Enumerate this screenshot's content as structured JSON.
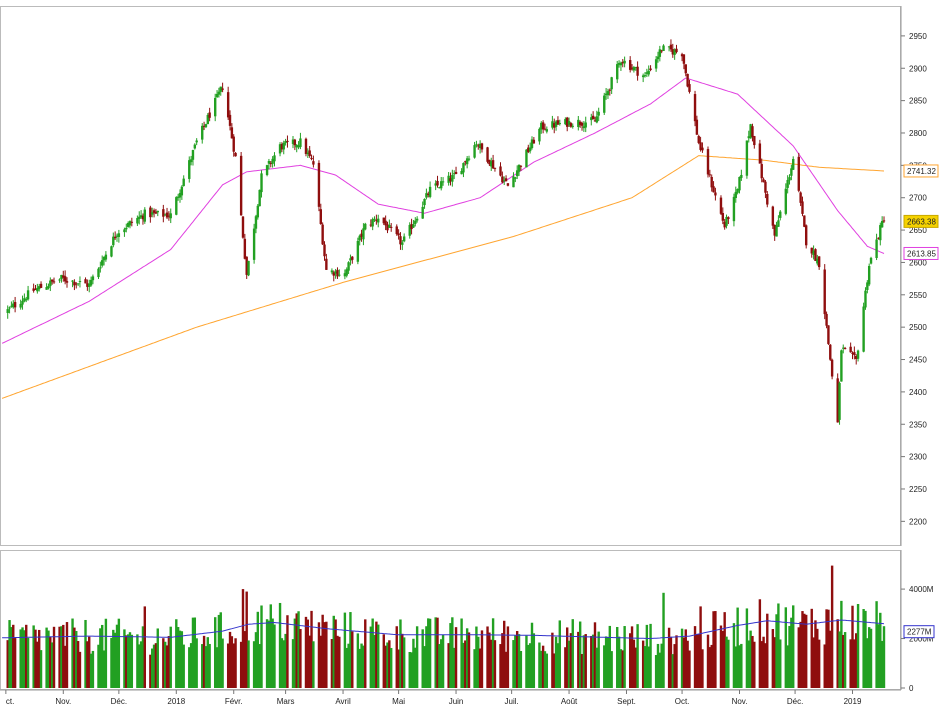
{
  "chart_data": [
    {
      "type": "candlestick",
      "title": "",
      "xlabel": "",
      "ylabel": "",
      "ylim": [
        2165,
        2990
      ],
      "y_ticks": [
        "2950",
        "2900",
        "2850",
        "2800",
        "2750",
        "2700",
        "2650",
        "2600",
        "2550",
        "2500",
        "2450",
        "2400",
        "2350",
        "2300",
        "2250",
        "2200"
      ],
      "x_ticks": [
        "ct.",
        "Nov.",
        "Déc.",
        "2018",
        "Févr.",
        "Mars",
        "Avril",
        "Mai",
        "Juin",
        "Juil.",
        "Août",
        "Sept.",
        "Oct.",
        "Nov.",
        "Déc.",
        "2019"
      ],
      "x_tick_dates": [
        "2017-10-01",
        "2017-11-01",
        "2017-12-01",
        "2018-01-01",
        "2018-02-01",
        "2018-03-01",
        "2018-04-01",
        "2018-05-01",
        "2018-06-01",
        "2018-07-01",
        "2018-08-01",
        "2018-09-01",
        "2018-10-01",
        "2018-11-01",
        "2018-12-01",
        "2019-01-01"
      ],
      "x_range": [
        "2017-09-30",
        "2019-01-18"
      ],
      "price_keypoints": [
        [
          "2017-09-29",
          2519
        ],
        [
          "2017-10-16",
          2557
        ],
        [
          "2017-10-31",
          2575
        ],
        [
          "2017-11-15",
          2565
        ],
        [
          "2017-11-30",
          2647
        ],
        [
          "2017-12-15",
          2675
        ],
        [
          "2017-12-29",
          2673
        ],
        [
          "2018-01-12",
          2786
        ],
        [
          "2018-01-26",
          2872
        ],
        [
          "2018-02-02",
          2762
        ],
        [
          "2018-02-08",
          2581
        ],
        [
          "2018-02-16",
          2732
        ],
        [
          "2018-02-26",
          2779
        ],
        [
          "2018-03-09",
          2786
        ],
        [
          "2018-03-16",
          2752
        ],
        [
          "2018-03-23",
          2588
        ],
        [
          "2018-04-02",
          2582
        ],
        [
          "2018-04-13",
          2656
        ],
        [
          "2018-04-20",
          2670
        ],
        [
          "2018-05-03",
          2629
        ],
        [
          "2018-05-18",
          2712
        ],
        [
          "2018-06-01",
          2734
        ],
        [
          "2018-06-12",
          2786
        ],
        [
          "2018-06-29",
          2718
        ],
        [
          "2018-07-17",
          2809
        ],
        [
          "2018-07-31",
          2816
        ],
        [
          "2018-08-15",
          2818
        ],
        [
          "2018-08-29",
          2914
        ],
        [
          "2018-09-11",
          2887
        ],
        [
          "2018-09-20",
          2930
        ],
        [
          "2018-10-01",
          2924
        ],
        [
          "2018-10-10",
          2785
        ],
        [
          "2018-10-24",
          2656
        ],
        [
          "2018-10-31",
          2711
        ],
        [
          "2018-11-07",
          2813
        ],
        [
          "2018-11-20",
          2641
        ],
        [
          "2018-11-30",
          2760
        ],
        [
          "2018-12-07",
          2633
        ],
        [
          "2018-12-14",
          2599
        ],
        [
          "2018-12-24",
          2351
        ],
        [
          "2018-12-26",
          2467
        ],
        [
          "2019-01-03",
          2448
        ],
        [
          "2019-01-10",
          2596
        ],
        [
          "2019-01-18",
          2670
        ]
      ],
      "sma_short_keypoints": [
        [
          "2017-09-29",
          2475
        ],
        [
          "2017-11-15",
          2540
        ],
        [
          "2017-12-29",
          2620
        ],
        [
          "2018-01-26",
          2720
        ],
        [
          "2018-02-08",
          2740
        ],
        [
          "2018-03-09",
          2750
        ],
        [
          "2018-03-28",
          2735
        ],
        [
          "2018-04-20",
          2690
        ],
        [
          "2018-05-15",
          2676
        ],
        [
          "2018-06-14",
          2700
        ],
        [
          "2018-07-13",
          2755
        ],
        [
          "2018-08-15",
          2800
        ],
        [
          "2018-09-14",
          2845
        ],
        [
          "2018-10-03",
          2885
        ],
        [
          "2018-10-31",
          2860
        ],
        [
          "2018-11-30",
          2780
        ],
        [
          "2018-12-24",
          2680
        ],
        [
          "2019-01-09",
          2625
        ],
        [
          "2019-01-18",
          2613.85
        ]
      ],
      "sma_long_keypoints": [
        [
          "2017-09-29",
          2390
        ],
        [
          "2018-01-12",
          2500
        ],
        [
          "2018-04-02",
          2570
        ],
        [
          "2018-07-02",
          2640
        ],
        [
          "2018-09-04",
          2700
        ],
        [
          "2018-10-10",
          2765
        ],
        [
          "2018-11-14",
          2758
        ],
        [
          "2018-12-14",
          2747
        ],
        [
          "2019-01-18",
          2741.32
        ]
      ],
      "last_values": {
        "price": "2663.38",
        "sma_long": "2741.32",
        "sma_short": "2613.85"
      },
      "colors": {
        "up": "#22a022",
        "down": "#8f0e0e",
        "sma_short": "#e040e0",
        "sma_long": "#ffa530"
      }
    },
    {
      "type": "bar",
      "title": "",
      "xlabel": "",
      "ylabel": "",
      "ylim": [
        0,
        5500
      ],
      "y_ticks": [
        "4000M",
        "2000M",
        "0"
      ],
      "avg_keypoints": [
        [
          "2017-09-29",
          2030
        ],
        [
          "2017-11-15",
          2100
        ],
        [
          "2017-12-29",
          2050
        ],
        [
          "2018-01-26",
          2300
        ],
        [
          "2018-02-09",
          2580
        ],
        [
          "2018-02-23",
          2650
        ],
        [
          "2018-03-23",
          2400
        ],
        [
          "2018-05-01",
          2150
        ],
        [
          "2018-06-15",
          2150
        ],
        [
          "2018-07-13",
          2130
        ],
        [
          "2018-08-15",
          2060
        ],
        [
          "2018-09-14",
          2000
        ],
        [
          "2018-10-05",
          2100
        ],
        [
          "2018-10-31",
          2530
        ],
        [
          "2018-11-16",
          2720
        ],
        [
          "2018-12-07",
          2580
        ],
        [
          "2018-12-26",
          2750
        ],
        [
          "2019-01-18",
          2600
        ]
      ],
      "volume_spikes": [
        [
          "2018-02-06",
          4000
        ],
        [
          "2018-02-08",
          3900
        ],
        [
          "2018-09-21",
          3850
        ],
        [
          "2018-10-11",
          3300
        ],
        [
          "2018-12-21",
          4950
        ],
        [
          "2017-12-15",
          3300
        ]
      ],
      "last_value": "2277M",
      "colors": {
        "avg": "#3333cc"
      }
    }
  ]
}
